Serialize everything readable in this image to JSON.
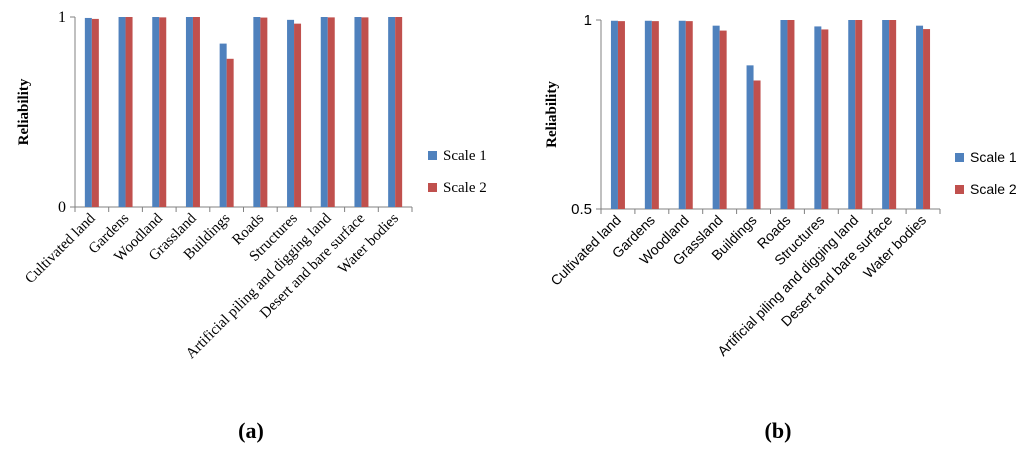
{
  "figure": {
    "panel_labels": [
      "(a)",
      "(b)"
    ]
  },
  "colors": {
    "scale1": "#4F81BD",
    "scale2": "#C0504D",
    "axis": "#808080",
    "text": "#000000"
  },
  "chart_data": [
    {
      "type": "bar",
      "panel": "(a)",
      "title": "",
      "xlabel": "",
      "ylabel": "Reliability",
      "ylim": [
        0,
        1
      ],
      "yticks": [
        0,
        1
      ],
      "ytick_labels": [
        "0",
        "1"
      ],
      "grid": false,
      "legend_position": "right",
      "categories": [
        "Cultivated land",
        "Gardens",
        "Woodland",
        "Grassland",
        "Buildings",
        "Roads",
        "Structures",
        "Artificial piling and digging land",
        "Desert and bare surface",
        "Water bodies"
      ],
      "series": [
        {
          "name": "Scale 1",
          "values": [
            0.995,
            1.0,
            1.0,
            1.0,
            0.86,
            1.0,
            0.985,
            1.0,
            1.0,
            1.0
          ]
        },
        {
          "name": "Scale 2",
          "values": [
            0.99,
            1.0,
            0.998,
            1.0,
            0.78,
            0.997,
            0.965,
            0.998,
            0.998,
            1.0
          ]
        }
      ]
    },
    {
      "type": "bar",
      "panel": "(b)",
      "title": "",
      "xlabel": "",
      "ylabel": "Reliability",
      "ylim": [
        0.5,
        1
      ],
      "yticks": [
        0.5,
        1
      ],
      "ytick_labels": [
        "0.5",
        "1"
      ],
      "grid": false,
      "legend_position": "right",
      "categories": [
        "Cultivated land",
        "Gardens",
        "Woodland",
        "Grassland",
        "Buildings",
        "Roads",
        "Structures",
        "Artificial piling and digging land",
        "Desert and bare surface",
        "Water bodies"
      ],
      "series": [
        {
          "name": "Scale 1",
          "values": [
            0.998,
            0.998,
            0.998,
            0.985,
            0.88,
            1.0,
            0.983,
            1.0,
            1.0,
            0.985
          ]
        },
        {
          "name": "Scale 2",
          "values": [
            0.997,
            0.997,
            0.997,
            0.972,
            0.84,
            1.0,
            0.975,
            1.0,
            1.0,
            0.976
          ]
        }
      ]
    }
  ]
}
